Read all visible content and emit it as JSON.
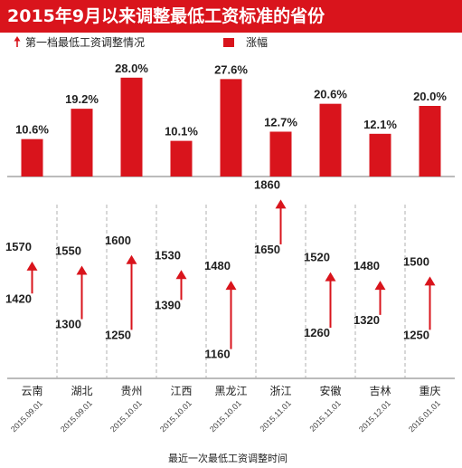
{
  "title": "2015年9月以来调整最低工资标准的省份",
  "legend": {
    "arrow_label": "第一档最低工资调整情况",
    "bar_label": "涨幅"
  },
  "xlabel": "最近一次最低工资调整时间",
  "colors": {
    "accent": "#d9141c",
    "text": "#222222",
    "divider": "#b0b0b0"
  },
  "chart_data": [
    {
      "type": "bar",
      "categories": [
        "云南",
        "湖北",
        "贵州",
        "江西",
        "黑龙江",
        "浙江",
        "安徽",
        "吉林",
        "重庆"
      ],
      "series": [
        {
          "name": "涨幅",
          "values": [
            10.6,
            19.2,
            28.0,
            10.1,
            27.6,
            12.7,
            20.6,
            12.1,
            20.0
          ],
          "value_labels": [
            "10.6%",
            "19.2%",
            "28.0%",
            "10.1%",
            "27.6%",
            "12.7%",
            "20.6%",
            "12.1%",
            "20.0%"
          ]
        }
      ],
      "ylim": [
        0,
        30
      ]
    },
    {
      "type": "arrow-range",
      "categories": [
        "云南",
        "湖北",
        "贵州",
        "江西",
        "黑龙江",
        "浙江",
        "安徽",
        "吉林",
        "重庆"
      ],
      "dates": [
        "2015.09.01",
        "2015.09.01",
        "2015.10.01",
        "2015.10.01",
        "2015.10.01",
        "2015.11.01",
        "2015.11.01",
        "2015.12.01",
        "2016.01.01"
      ],
      "series": [
        {
          "name": "第一档最低工资调整情况",
          "from": [
            1420,
            1300,
            1250,
            1390,
            1160,
            1650,
            1260,
            1320,
            1250
          ],
          "to": [
            1570,
            1550,
            1600,
            1530,
            1480,
            1860,
            1520,
            1480,
            1500
          ]
        }
      ],
      "ylim": [
        1150,
        1870
      ],
      "xlabel": "最近一次最低工资调整时间"
    }
  ]
}
